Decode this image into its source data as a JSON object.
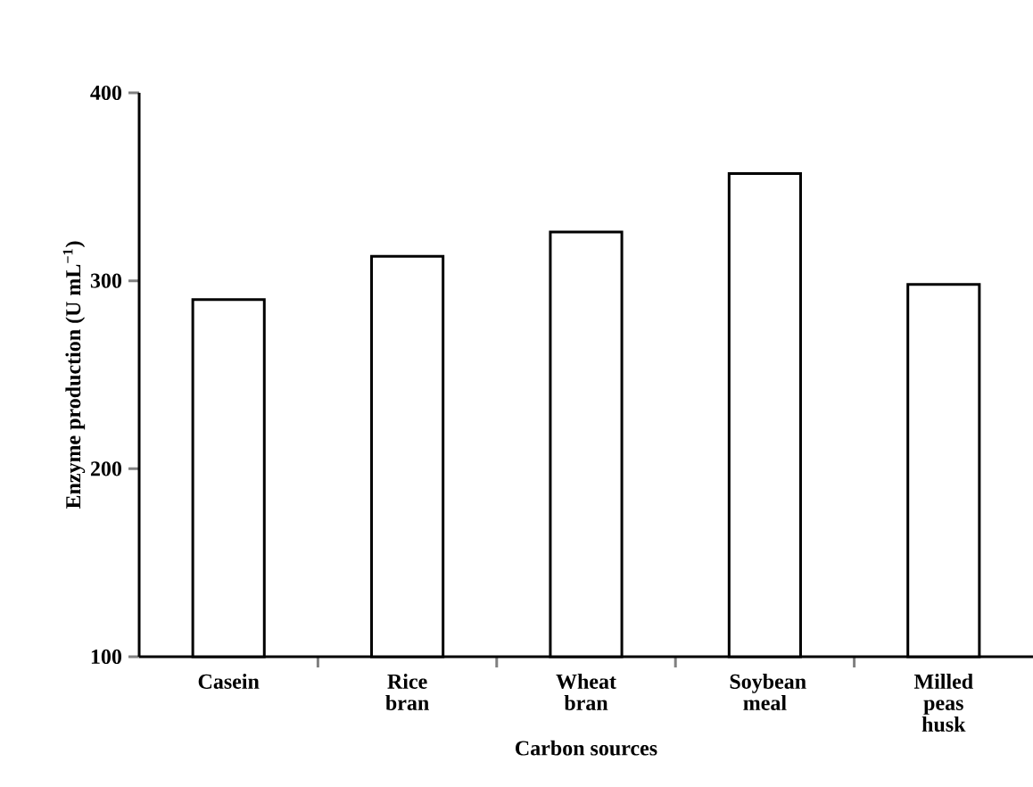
{
  "chart_data": {
    "type": "bar",
    "xlabel": "Carbon sources",
    "ylabel": "Enzyme production (U mL$^{−1}$)",
    "categories": [
      "Casein",
      "Rice bran",
      "Wheat bran",
      "Soybean meal",
      "Milled peas husk"
    ],
    "values": [
      290,
      313,
      326,
      357,
      298
    ],
    "color": "#ffffff",
    "ylim": [
      100,
      400
    ],
    "yticks": [
      100,
      200,
      300,
      400
    ],
    "grid": false
  }
}
